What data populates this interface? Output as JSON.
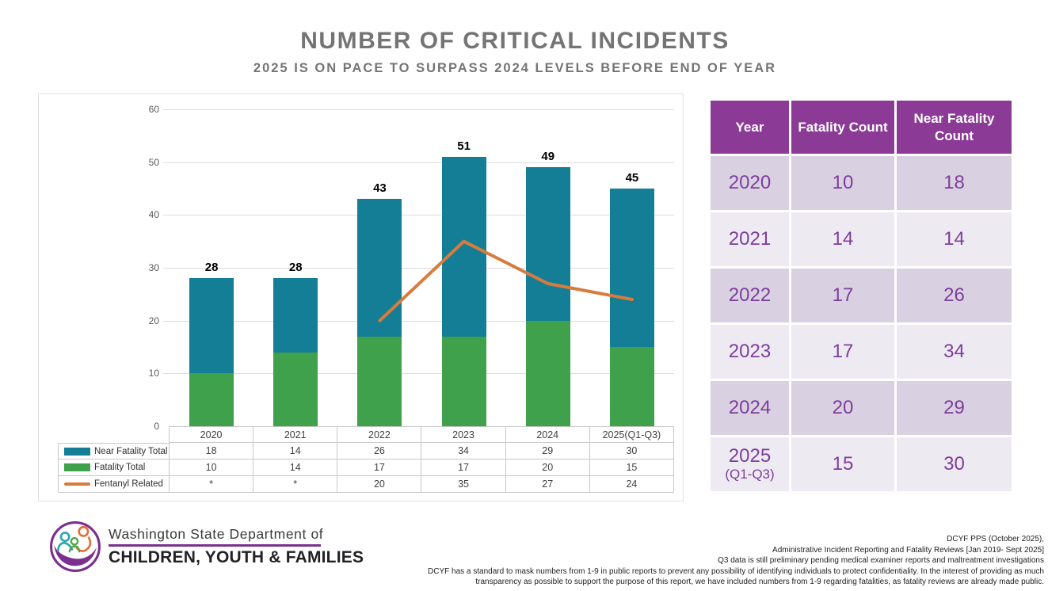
{
  "slide": {
    "title": "NUMBER OF CRITICAL INCIDENTS",
    "subtitle": "2025 IS ON PACE TO SURPASS 2024 LEVELS BEFORE END OF YEAR"
  },
  "chart_data": {
    "type": "bar",
    "subtype": "stacked-bars-with-line-overlay",
    "categories": [
      "2020",
      "2021",
      "2022",
      "2023",
      "2024",
      "2025(Q1-Q3)"
    ],
    "series": [
      {
        "name": "Near Fatality Total",
        "type": "bar",
        "color": "#137E96",
        "values": [
          18,
          14,
          26,
          34,
          29,
          30
        ]
      },
      {
        "name": "Fatality Total",
        "type": "bar",
        "color": "#3FA14C",
        "values": [
          10,
          14,
          17,
          17,
          20,
          15
        ]
      },
      {
        "name": "Fentanyl Related",
        "type": "line",
        "color": "#D87C3E",
        "values": [
          null,
          null,
          20,
          35,
          27,
          24
        ],
        "display_values": [
          "*",
          "*",
          "20",
          "35",
          "27",
          "24"
        ]
      }
    ],
    "bar_totals": [
      28,
      28,
      43,
      51,
      49,
      45
    ],
    "stack_order_bottom_to_top": [
      "Fatality Total",
      "Near Fatality Total"
    ],
    "ylim": [
      0,
      60
    ],
    "yticks": [
      0,
      10,
      20,
      30,
      40,
      50,
      60
    ],
    "grid": true,
    "legend_position": "data-table-below-chart"
  },
  "summary_table": {
    "headers": [
      "Year",
      "Fatality Count",
      "Near Fatality Count"
    ],
    "rows": [
      {
        "year": "2020",
        "year_sub": "",
        "fatality_count": "10",
        "near_fatality_count": "18"
      },
      {
        "year": "2021",
        "year_sub": "",
        "fatality_count": "14",
        "near_fatality_count": "14"
      },
      {
        "year": "2022",
        "year_sub": "",
        "fatality_count": "17",
        "near_fatality_count": "26"
      },
      {
        "year": "2023",
        "year_sub": "",
        "fatality_count": "17",
        "near_fatality_count": "34"
      },
      {
        "year": "2024",
        "year_sub": "",
        "fatality_count": "20",
        "near_fatality_count": "29"
      },
      {
        "year": "2025",
        "year_sub": "(Q1-Q3)",
        "fatality_count": "15",
        "near_fatality_count": "30"
      }
    ],
    "colors": {
      "header_bg": "#8B3A96",
      "header_text": "#FFFFFF",
      "row_dark": "#D9D0E2",
      "row_light": "#EDEAF2",
      "value_text": "#7D3E9B"
    }
  },
  "logo": {
    "org_line1": "Washington State Department of",
    "org_line2": "CHILDREN, YOUTH & FAMILIES"
  },
  "footnotes": [
    "DCYF PPS (October 2025),",
    "Administrative Incident Reporting and Fatality Reviews [Jan 2019- Sept 2025]",
    "Q3 data is still preliminary pending medical examiner reports and maltreatment investigations",
    "DCYF has a standard to mask numbers from 1-9 in public reports to prevent any possibility of identifying individuals to protect confidentiality. In the interest of providing as much",
    "transparency as possible to support the purpose of this report, we have included numbers from 1-9 regarding fatalities, as fatality reviews are already made public."
  ]
}
